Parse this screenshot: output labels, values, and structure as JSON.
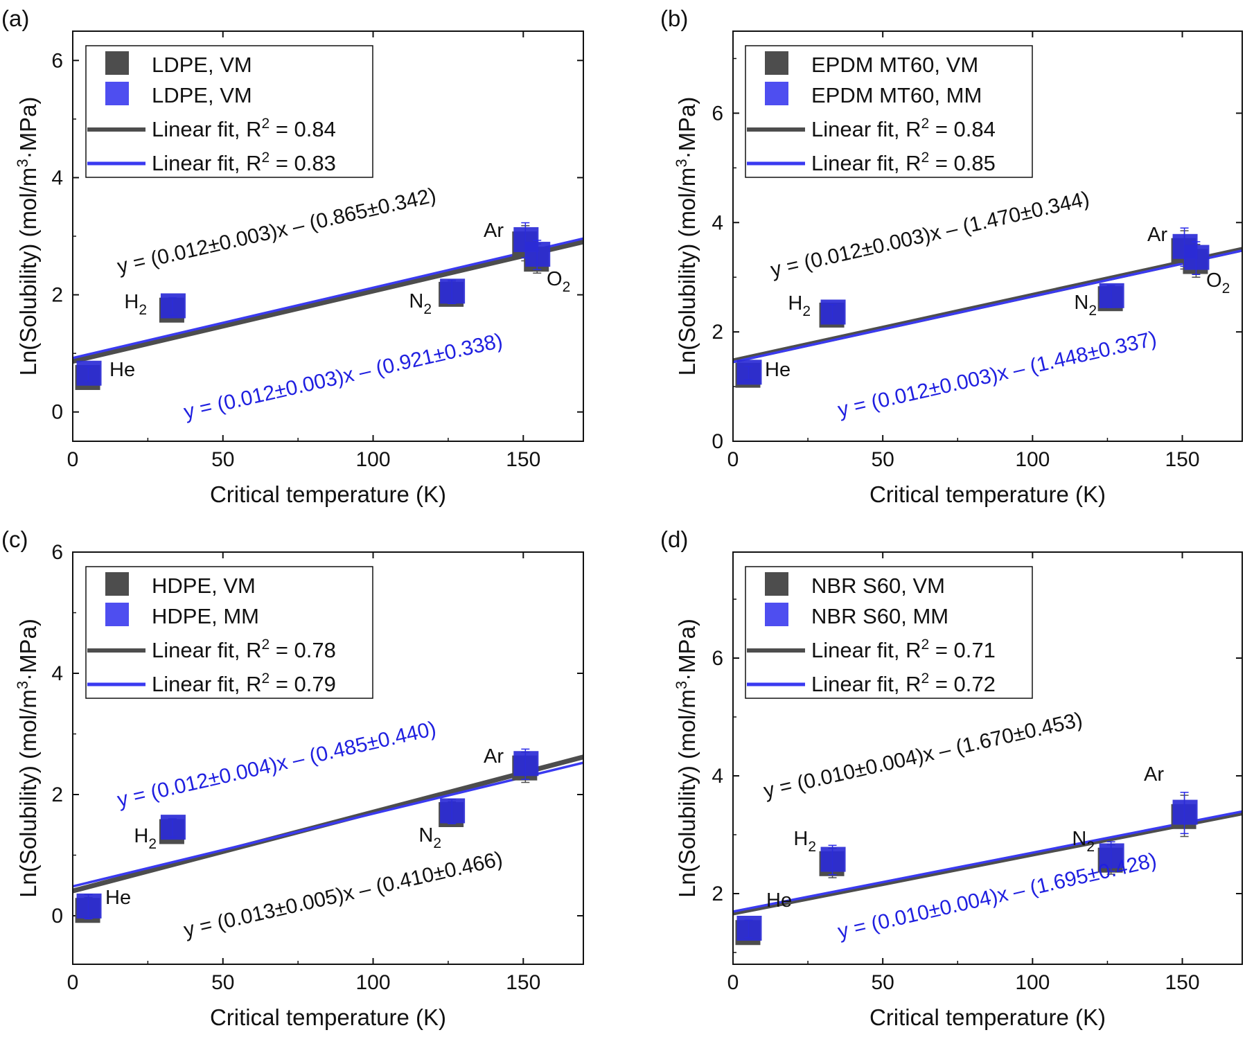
{
  "figure": {
    "xlabel": "Critical temperature (K)",
    "ylabel_prefix": "Ln(Solubility) (mol/m",
    "ylabel_sup": "3",
    "ylabel_suffix": "·MPa)"
  },
  "chart_data": [
    {
      "type": "scatter",
      "panel_label": "(a)",
      "xlabel": "Critical temperature (K)",
      "ylabel": "Ln(Solubility) (mol/m3·MPa)",
      "xlim": [
        0,
        170
      ],
      "ylim": [
        -0.5,
        6.5
      ],
      "xticks": [
        0,
        50,
        100,
        150
      ],
      "yticks": [
        0,
        2,
        4,
        6
      ],
      "legend": [
        "LDPE, VM",
        "LDPE, VM",
        "Linear fit, R",
        "Linear fit, R"
      ],
      "legend_r2": [
        "",
        "",
        " = 0.84",
        " = 0.83"
      ],
      "legend_placement": "top-left",
      "series": [
        {
          "name": "LDPE, VM",
          "color": "#4d4d4d",
          "x": [
            5.2,
            33.2,
            126.2,
            150.7,
            154.6
          ],
          "y": [
            0.6,
            1.75,
            2.02,
            2.88,
            2.62
          ],
          "err": [
            0.12,
            0.15,
            0.2,
            0.3,
            0.25
          ]
        },
        {
          "name": "LDPE, VM",
          "color": "#2a2ae8",
          "x": [
            5.2,
            33.2,
            126.2,
            150.7,
            154.6
          ],
          "y": [
            0.65,
            1.8,
            2.05,
            2.93,
            2.68
          ],
          "err": [
            0.12,
            0.15,
            0.2,
            0.3,
            0.25
          ]
        }
      ],
      "fits": [
        {
          "color": "#4d4d4d",
          "slope": 0.012,
          "intercept": 0.865
        },
        {
          "color": "#3a3af0",
          "slope": 0.012,
          "intercept": 0.921
        }
      ],
      "equations": [
        {
          "text": "y = (0.012±0.003)x – (0.865±0.342)",
          "color": "#111111"
        },
        {
          "text": "y = (0.012±0.003)x – (0.921±0.338)",
          "color": "#1f1fe0"
        }
      ],
      "gas_labels": [
        {
          "name": "He",
          "sub": ""
        },
        {
          "name": "H",
          "sub": "2"
        },
        {
          "name": "N",
          "sub": "2"
        },
        {
          "name": "Ar",
          "sub": ""
        },
        {
          "name": "O",
          "sub": "2"
        }
      ]
    },
    {
      "type": "scatter",
      "panel_label": "(b)",
      "xlabel": "Critical temperature (K)",
      "ylabel": "Ln(Solubility) (mol/m3·MPa)",
      "xlim": [
        0,
        170
      ],
      "ylim": [
        0,
        7.5
      ],
      "xticks": [
        0,
        50,
        100,
        150
      ],
      "yticks": [
        0,
        2,
        4,
        6
      ],
      "legend": [
        "EPDM MT60, VM",
        "EPDM MT60, MM",
        "Linear fit, R",
        "Linear fit, R"
      ],
      "legend_r2": [
        "",
        "",
        " = 0.84",
        " = 0.85"
      ],
      "legend_placement": "top-left",
      "series": [
        {
          "name": "EPDM MT60, VM",
          "color": "#4d4d4d",
          "x": [
            5.2,
            33.2,
            126.2,
            150.7,
            154.6
          ],
          "y": [
            1.22,
            2.32,
            2.62,
            3.5,
            3.3
          ],
          "err": [
            0.12,
            0.15,
            0.2,
            0.35,
            0.3
          ]
        },
        {
          "name": "EPDM MT60, MM",
          "color": "#2a2ae8",
          "x": [
            5.2,
            33.2,
            126.2,
            150.7,
            154.6
          ],
          "y": [
            1.25,
            2.35,
            2.65,
            3.55,
            3.35
          ],
          "err": [
            0.12,
            0.15,
            0.2,
            0.35,
            0.3
          ]
        }
      ],
      "fits": [
        {
          "color": "#4d4d4d",
          "slope": 0.012,
          "intercept": 1.47
        },
        {
          "color": "#3a3af0",
          "slope": 0.012,
          "intercept": 1.448
        }
      ],
      "equations": [
        {
          "text": "y = (0.012±0.003)x – (1.470±0.344)",
          "color": "#111111"
        },
        {
          "text": "y = (0.012±0.003)x – (1.448±0.337)",
          "color": "#1f1fe0"
        }
      ],
      "gas_labels": [
        {
          "name": "He",
          "sub": ""
        },
        {
          "name": "H",
          "sub": "2"
        },
        {
          "name": "N",
          "sub": "2"
        },
        {
          "name": "Ar",
          "sub": ""
        },
        {
          "name": "O",
          "sub": "2"
        }
      ]
    },
    {
      "type": "scatter",
      "panel_label": "(c)",
      "xlabel": "Critical temperature (K)",
      "ylabel": "Ln(Solubility) (mol/m3·MPa)",
      "xlim": [
        0,
        170
      ],
      "ylim": [
        -0.8,
        6.0
      ],
      "xticks": [
        0,
        50,
        100,
        150
      ],
      "yticks": [
        0,
        2,
        4,
        6
      ],
      "legend": [
        "HDPE, VM",
        "HDPE, MM",
        "Linear fit, R",
        "Linear fit, R"
      ],
      "legend_r2": [
        "",
        "",
        " = 0.78",
        " = 0.79"
      ],
      "legend_placement": "top-left",
      "series": [
        {
          "name": "HDPE, VM",
          "color": "#4d4d4d",
          "x": [
            5.2,
            33.2,
            126.2,
            150.7
          ],
          "y": [
            0.1,
            1.4,
            1.68,
            2.45
          ],
          "err": [
            0.2,
            0.15,
            0.2,
            0.25
          ]
        },
        {
          "name": "HDPE, MM",
          "color": "#2a2ae8",
          "x": [
            5.2,
            33.2,
            126.2,
            150.7
          ],
          "y": [
            0.15,
            1.45,
            1.72,
            2.5
          ],
          "err": [
            0.2,
            0.15,
            0.2,
            0.25
          ]
        }
      ],
      "fits": [
        {
          "color": "#4d4d4d",
          "slope": 0.013,
          "intercept": 0.41
        },
        {
          "color": "#3a3af0",
          "slope": 0.012,
          "intercept": 0.485
        }
      ],
      "equations": [
        {
          "text": "y = (0.012±0.004)x – (0.485±0.440)",
          "color": "#1f1fe0"
        },
        {
          "text": "y = (0.013±0.005)x – (0.410±0.466)",
          "color": "#111111"
        }
      ],
      "gas_labels": [
        {
          "name": "He",
          "sub": ""
        },
        {
          "name": "H",
          "sub": "2"
        },
        {
          "name": "N",
          "sub": "2"
        },
        {
          "name": "Ar",
          "sub": ""
        }
      ]
    },
    {
      "type": "scatter",
      "panel_label": "(d)",
      "xlabel": "Critical temperature (K)",
      "ylabel": "Ln(Solubility) (mol/m3·MPa)",
      "xlim": [
        0,
        170
      ],
      "ylim": [
        0.8,
        7.8
      ],
      "xticks": [
        0,
        50,
        100,
        150
      ],
      "yticks": [
        2,
        4,
        6
      ],
      "legend": [
        "NBR S60, VM",
        "NBR S60, MM",
        "Linear fit, R",
        "Linear fit, R"
      ],
      "legend_r2": [
        "",
        "",
        " = 0.71",
        " = 0.72"
      ],
      "legend_placement": "top-left",
      "series": [
        {
          "name": "NBR S60, VM",
          "color": "#4d4d4d",
          "x": [
            5.2,
            33.2,
            126.2,
            150.7
          ],
          "y": [
            1.35,
            2.52,
            2.58,
            3.32
          ],
          "err": [
            0.15,
            0.25,
            0.25,
            0.35
          ]
        },
        {
          "name": "NBR S60, MM",
          "color": "#2a2ae8",
          "x": [
            5.2,
            33.2,
            126.2,
            150.7
          ],
          "y": [
            1.4,
            2.57,
            2.63,
            3.37
          ],
          "err": [
            0.15,
            0.25,
            0.25,
            0.35
          ]
        }
      ],
      "fits": [
        {
          "color": "#4d4d4d",
          "slope": 0.01,
          "intercept": 1.67
        },
        {
          "color": "#3a3af0",
          "slope": 0.01,
          "intercept": 1.695
        }
      ],
      "equations": [
        {
          "text": "y = (0.010±0.004)x – (1.670±0.453)",
          "color": "#111111"
        },
        {
          "text": "y = (0.010±0.004)x – (1.695±0.428)",
          "color": "#1f1fe0"
        }
      ],
      "gas_labels": [
        {
          "name": "He",
          "sub": ""
        },
        {
          "name": "H",
          "sub": "2"
        },
        {
          "name": "N",
          "sub": "2"
        },
        {
          "name": "Ar",
          "sub": ""
        }
      ]
    }
  ]
}
